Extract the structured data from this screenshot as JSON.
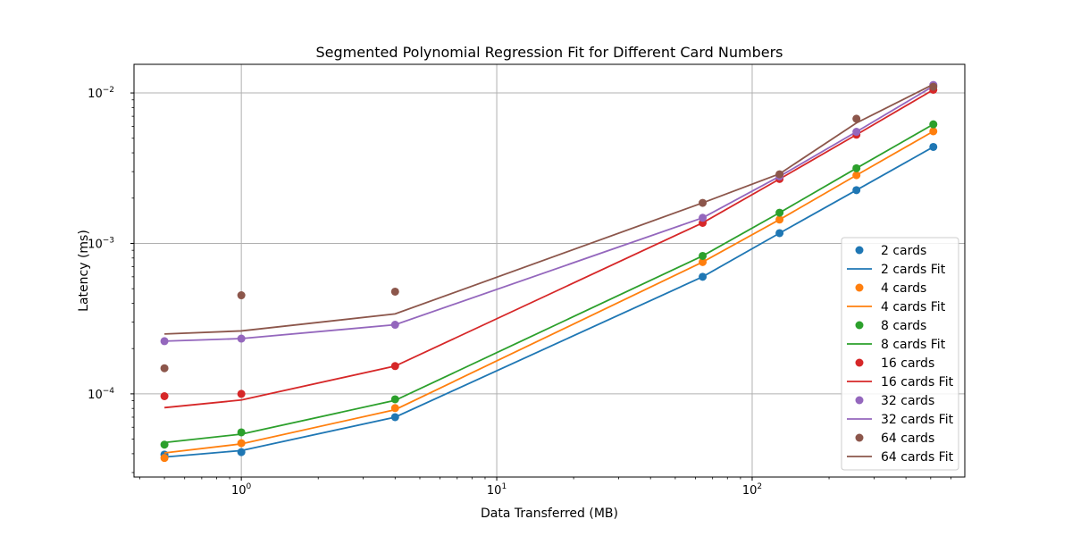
{
  "chart_data": {
    "type": "scatter",
    "title": "Segmented Polynomial Regression Fit for Different Card Numbers",
    "xlabel": "Data Transferred (MB)",
    "ylabel": "Latency (ms)",
    "xscale": "log",
    "yscale": "log",
    "xlim": [
      0.38,
      680
    ],
    "ylim": [
      2.8e-05,
      0.0155
    ],
    "xticks": [
      {
        "value": 1,
        "base": "10",
        "exp": "0"
      },
      {
        "value": 10,
        "base": "10",
        "exp": "1"
      },
      {
        "value": 100,
        "base": "10",
        "exp": "2"
      }
    ],
    "yticks": [
      {
        "value": 0.0001,
        "base": "10",
        "exp": "−4"
      },
      {
        "value": 0.001,
        "base": "10",
        "exp": "−3"
      },
      {
        "value": 0.01,
        "base": "10",
        "exp": "−2"
      }
    ],
    "grid": true,
    "legend_position": "lower-right",
    "x": [
      0.5,
      1,
      4,
      64,
      128,
      256,
      512
    ],
    "series": [
      {
        "name": "2 cards",
        "fit_name": "2 cards Fit",
        "color": "#1f77b4",
        "points": [
          3.95e-05,
          4.1e-05,
          7e-05,
          0.0006,
          0.00117,
          0.00226,
          0.00438
        ],
        "fit": [
          3.8e-05,
          4.2e-05,
          7e-05,
          0.0006,
          0.00117,
          0.00226,
          0.00438
        ]
      },
      {
        "name": "4 cards",
        "fit_name": "4 cards Fit",
        "color": "#ff7f0e",
        "points": [
          3.75e-05,
          4.7e-05,
          8.05e-05,
          0.000752,
          0.00144,
          0.00284,
          0.00556
        ],
        "fit": [
          4.05e-05,
          4.65e-05,
          7.85e-05,
          0.000752,
          0.00144,
          0.00284,
          0.00556
        ]
      },
      {
        "name": "8 cards",
        "fit_name": "8 cards Fit",
        "color": "#2ca02c",
        "points": [
          4.6e-05,
          5.55e-05,
          9.2e-05,
          0.000826,
          0.0016,
          0.00316,
          0.00619
        ],
        "fit": [
          4.75e-05,
          5.4e-05,
          9.05e-05,
          0.000826,
          0.0016,
          0.00316,
          0.00619
        ]
      },
      {
        "name": "16 cards",
        "fit_name": "16 cards Fit",
        "color": "#d62728",
        "points": [
          9.65e-05,
          0.0001,
          0.000153,
          0.00137,
          0.00268,
          0.00528,
          0.0105
        ],
        "fit": [
          8.1e-05,
          9.1e-05,
          0.000153,
          0.00137,
          0.00268,
          0.00528,
          0.0105
        ]
      },
      {
        "name": "32 cards",
        "fit_name": "32 cards Fit",
        "color": "#9467bd",
        "points": [
          0.000224,
          0.000233,
          0.000288,
          0.00148,
          0.00279,
          0.00552,
          0.0113
        ],
        "fit": [
          0.000224,
          0.000233,
          0.000288,
          0.00148,
          0.00279,
          0.00552,
          0.0111
        ]
      },
      {
        "name": "64 cards",
        "fit_name": "64 cards Fit",
        "color": "#8c564b",
        "points": [
          0.000148,
          0.000452,
          0.000478,
          0.00186,
          0.00288,
          0.00674,
          0.011
        ],
        "fit": [
          0.00025,
          0.000262,
          0.00034,
          0.00186,
          0.0029,
          0.00632,
          0.0114
        ]
      }
    ]
  }
}
